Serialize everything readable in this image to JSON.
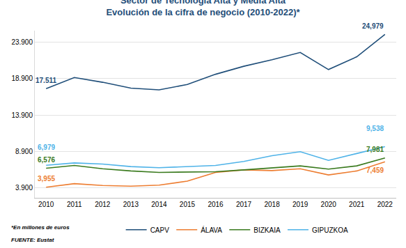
{
  "chart_data": {
    "type": "line",
    "title": "Sector de Tecnología Alta y Media Alta",
    "subtitle": "Evolución de la cifra de negocio (2010-2022)*",
    "categories": [
      "2010",
      "2011",
      "2012",
      "2013",
      "2014",
      "2015",
      "2016",
      "2017",
      "2018",
      "2019",
      "2020",
      "2021",
      "2022"
    ],
    "series": [
      {
        "name": "CAPV",
        "color": "#1f4e79",
        "values": [
          17511,
          19050,
          18400,
          17600,
          17350,
          18100,
          19500,
          20600,
          21500,
          22500,
          20150,
          21900,
          24979
        ],
        "value_labels": [
          "17.511",
          null,
          null,
          null,
          null,
          null,
          null,
          null,
          null,
          null,
          null,
          null,
          "24,979"
        ]
      },
      {
        "name": "ÁLAVA",
        "color": "#ed7d31",
        "values": [
          3955,
          4450,
          4200,
          4100,
          4250,
          4800,
          6000,
          6350,
          6250,
          6500,
          5650,
          6200,
          7459
        ],
        "value_labels": [
          "3,955",
          null,
          null,
          null,
          null,
          null,
          null,
          null,
          null,
          null,
          null,
          null,
          "7,459"
        ]
      },
      {
        "name": "BIZKAIA",
        "color": "#3a7a1e",
        "values": [
          6576,
          6950,
          6500,
          6200,
          6000,
          6050,
          6100,
          6350,
          6650,
          6900,
          6450,
          6900,
          7981
        ],
        "value_labels": [
          "6,576",
          null,
          null,
          null,
          null,
          null,
          null,
          null,
          null,
          null,
          null,
          null,
          "7,981"
        ]
      },
      {
        "name": "GIPUZKOA",
        "color": "#4fb3e8",
        "values": [
          6979,
          7300,
          7150,
          6800,
          6650,
          6800,
          6950,
          7500,
          8300,
          8850,
          7650,
          8600,
          9538
        ],
        "value_labels": [
          "6,979",
          null,
          null,
          null,
          null,
          null,
          null,
          null,
          null,
          null,
          null,
          null,
          "9,538"
        ]
      }
    ],
    "ylim": [
      2500,
      25500
    ],
    "yticks": [
      {
        "value": 3900,
        "label": "3.900"
      },
      {
        "value": 8900,
        "label": "8.900"
      },
      {
        "value": 13900,
        "label": "13.900"
      },
      {
        "value": 18900,
        "label": "18.900"
      },
      {
        "value": 23900,
        "label": "23.900"
      }
    ],
    "grid": true,
    "legend": "bottom",
    "data_labels": true,
    "annotations": [
      "*En millones de euros",
      "FUENTE: Eustat"
    ]
  }
}
